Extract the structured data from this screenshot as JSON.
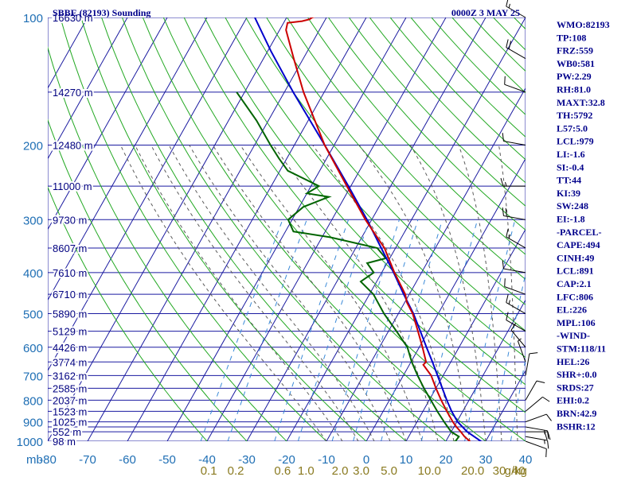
{
  "header": {
    "station": "SBBE (82193) Sounding",
    "time": "0000Z  3 MAY 25"
  },
  "colors": {
    "grid": "#1a1aa0",
    "dry_adiabat": "#22a822",
    "moist_adiabat": "#5a5a5a",
    "mixing_ratio": "#3a8ad8",
    "temperature": "#cc0000",
    "dewpoint": "#006400",
    "parcel": "#0000cc",
    "text": "#00008b"
  },
  "chart_data": {
    "type": "skew-t",
    "pressure_unit_label": "mb",
    "mixing_ratio_unit_label": "g/kg",
    "xlim": [
      -80,
      40
    ],
    "ylim": [
      1000,
      100
    ],
    "pressure_levels": [
      100,
      200,
      300,
      400,
      500,
      600,
      700,
      800,
      900,
      1000
    ],
    "pressure_labels": [
      "100",
      "200",
      "300",
      "400",
      "500",
      "600",
      "700",
      "800",
      "900",
      "1000"
    ],
    "pressure_grid": [
      100,
      150,
      200,
      250,
      300,
      350,
      400,
      450,
      500,
      550,
      600,
      650,
      700,
      750,
      800,
      850,
      900,
      925,
      950,
      1000
    ],
    "temperature_ticks": [
      -80,
      -70,
      -60,
      -50,
      -40,
      -30,
      -20,
      -10,
      0,
      10,
      20,
      30,
      40
    ],
    "temperature_tick_labels": [
      "-80",
      "-70",
      "-60",
      "-50",
      "-40",
      "-30",
      "-20",
      "-10",
      "0",
      "10",
      "20",
      "30",
      "40"
    ],
    "mixing_ratio_values": [
      0.1,
      0.2,
      0.6,
      1.0,
      2.0,
      3.0,
      5.0,
      10.0,
      20.0,
      30.0,
      40.0
    ],
    "mixing_ratio_labels": [
      "0.1",
      "0.2",
      "0.6",
      "1.0",
      "2.0",
      "3.0",
      "5.0",
      "10.0",
      "20.0",
      "30",
      "40"
    ],
    "heights": [
      {
        "p": 100,
        "label": "16630 m"
      },
      {
        "p": 150,
        "label": "14270 m"
      },
      {
        "p": 200,
        "label": "12480 m"
      },
      {
        "p": 250,
        "label": "11000 m"
      },
      {
        "p": 300,
        "label": "9730 m"
      },
      {
        "p": 350,
        "label": "8607 m"
      },
      {
        "p": 400,
        "label": "7610 m"
      },
      {
        "p": 450,
        "label": "6710 m"
      },
      {
        "p": 500,
        "label": "5890 m"
      },
      {
        "p": 550,
        "label": "5129 m"
      },
      {
        "p": 600,
        "label": "4426 m"
      },
      {
        "p": 650,
        "label": "3774 m"
      },
      {
        "p": 700,
        "label": "3162 m"
      },
      {
        "p": 750,
        "label": "2585 m"
      },
      {
        "p": 800,
        "label": "2037 m"
      },
      {
        "p": 850,
        "label": "1523 m"
      },
      {
        "p": 900,
        "label": "1025 m"
      },
      {
        "p": 950,
        "label": "552 m"
      },
      {
        "p": 1000,
        "label": "98 m"
      }
    ],
    "temperature_profile": [
      {
        "p": 1010,
        "t": 26.4
      },
      {
        "p": 1000,
        "t": 26.0
      },
      {
        "p": 975,
        "t": 24.0
      },
      {
        "p": 950,
        "t": 22.4
      },
      {
        "p": 925,
        "t": 20.6
      },
      {
        "p": 900,
        "t": 19.0
      },
      {
        "p": 850,
        "t": 16.0
      },
      {
        "p": 800,
        "t": 13.0
      },
      {
        "p": 750,
        "t": 10.0
      },
      {
        "p": 700,
        "t": 7.0
      },
      {
        "p": 660,
        "t": 3.5
      },
      {
        "p": 650,
        "t": 3.8
      },
      {
        "p": 600,
        "t": 0.8
      },
      {
        "p": 550,
        "t": -2.6
      },
      {
        "p": 500,
        "t": -6.4
      },
      {
        "p": 470,
        "t": -9.5
      },
      {
        "p": 450,
        "t": -11.0
      },
      {
        "p": 400,
        "t": -16.8
      },
      {
        "p": 350,
        "t": -22.8
      },
      {
        "p": 300,
        "t": -31.6
      },
      {
        "p": 250,
        "t": -41.0
      },
      {
        "p": 200,
        "t": -52.4
      },
      {
        "p": 150,
        "t": -65.2
      },
      {
        "p": 125,
        "t": -72.4
      },
      {
        "p": 107,
        "t": -78.4
      },
      {
        "p": 103,
        "t": -79.0
      },
      {
        "p": 102,
        "t": -75.6
      },
      {
        "p": 101,
        "t": -74.0
      },
      {
        "p": 100,
        "t": -73.6
      },
      {
        "p": 96,
        "t": -67.6
      }
    ],
    "dewpoint_profile": [
      {
        "p": 1010,
        "t": 20.8
      },
      {
        "p": 1000,
        "t": 22.4
      },
      {
        "p": 975,
        "t": 22.6
      },
      {
        "p": 950,
        "t": 20.0
      },
      {
        "p": 925,
        "t": 18.4
      },
      {
        "p": 900,
        "t": 16.8
      },
      {
        "p": 850,
        "t": 13.6
      },
      {
        "p": 800,
        "t": 10.4
      },
      {
        "p": 750,
        "t": 7.0
      },
      {
        "p": 700,
        "t": 3.6
      },
      {
        "p": 650,
        "t": 0.2
      },
      {
        "p": 600,
        "t": -3.0
      },
      {
        "p": 550,
        "t": -8.0
      },
      {
        "p": 500,
        "t": -13.6
      },
      {
        "p": 450,
        "t": -19.0
      },
      {
        "p": 420,
        "t": -24.0
      },
      {
        "p": 400,
        "t": -22.0
      },
      {
        "p": 380,
        "t": -25.0
      },
      {
        "p": 370,
        "t": -21.0
      },
      {
        "p": 350,
        "t": -24.6
      },
      {
        "p": 330,
        "t": -38.0
      },
      {
        "p": 320,
        "t": -48.0
      },
      {
        "p": 300,
        "t": -51.0
      },
      {
        "p": 280,
        "t": -49.0
      },
      {
        "p": 265,
        "t": -44.0
      },
      {
        "p": 260,
        "t": -50.0
      },
      {
        "p": 250,
        "t": -48.0
      },
      {
        "p": 230,
        "t": -58.0
      },
      {
        "p": 215,
        "t": -62.0
      },
      {
        "p": 200,
        "t": -66.0
      },
      {
        "p": 175,
        "t": -73.0
      },
      {
        "p": 150,
        "t": -82.0
      }
    ],
    "parcel_profile": [
      {
        "p": 1010,
        "t": 29.6
      },
      {
        "p": 1000,
        "t": 28.8
      },
      {
        "p": 950,
        "t": 24.0
      },
      {
        "p": 900,
        "t": 20.2
      },
      {
        "p": 850,
        "t": 17.2
      },
      {
        "p": 800,
        "t": 14.4
      },
      {
        "p": 750,
        "t": 11.6
      },
      {
        "p": 700,
        "t": 8.6
      },
      {
        "p": 650,
        "t": 5.4
      },
      {
        "p": 600,
        "t": 1.8
      },
      {
        "p": 550,
        "t": -2.0
      },
      {
        "p": 500,
        "t": -6.2
      },
      {
        "p": 450,
        "t": -11.4
      },
      {
        "p": 400,
        "t": -17.0
      },
      {
        "p": 350,
        "t": -23.6
      },
      {
        "p": 300,
        "t": -31.2
      },
      {
        "p": 250,
        "t": -40.6
      },
      {
        "p": 200,
        "t": -52.4
      },
      {
        "p": 150,
        "t": -67.8
      },
      {
        "p": 120,
        "t": -79.2
      },
      {
        "p": 100,
        "t": -88.0
      }
    ],
    "wind_barbs": [
      {
        "p": 1000,
        "dir": 110,
        "spd": 10
      },
      {
        "p": 975,
        "dir": 100,
        "spd": 15
      },
      {
        "p": 950,
        "dir": 90,
        "spd": 20
      },
      {
        "p": 925,
        "dir": 100,
        "spd": 15
      },
      {
        "p": 900,
        "dir": 70,
        "spd": 10
      },
      {
        "p": 850,
        "dir": 50,
        "spd": 10
      },
      {
        "p": 800,
        "dir": 30,
        "spd": 10
      },
      {
        "p": 700,
        "dir": 10,
        "spd": 10
      },
      {
        "p": 650,
        "dir": 340,
        "spd": 5
      },
      {
        "p": 600,
        "dir": 320,
        "spd": 10
      },
      {
        "p": 550,
        "dir": 300,
        "spd": 10
      },
      {
        "p": 500,
        "dir": 300,
        "spd": 15
      },
      {
        "p": 450,
        "dir": 290,
        "spd": 10
      },
      {
        "p": 400,
        "dir": 280,
        "spd": 10
      },
      {
        "p": 350,
        "dir": 300,
        "spd": 15
      },
      {
        "p": 300,
        "dir": 280,
        "spd": 20
      },
      {
        "p": 250,
        "dir": 270,
        "spd": 15
      },
      {
        "p": 200,
        "dir": 280,
        "spd": 10
      },
      {
        "p": 150,
        "dir": 290,
        "spd": 10
      },
      {
        "p": 125,
        "dir": 300,
        "spd": 20
      },
      {
        "p": 100,
        "dir": 300,
        "spd": 15
      }
    ]
  },
  "indices": [
    "WMO:82193",
    "TP:108",
    "FRZ:559",
    "WB0:581",
    "PW:2.29",
    "RH:81.0",
    "MAXT:32.8",
    "TH:5792",
    "L57:5.0",
    "LCL:979",
    "LI:-1.6",
    "SI:-0.4",
    "TT:44",
    "KI:39",
    "SW:248",
    "EI:-1.8",
    "-PARCEL-",
    "CAPE:494",
    "CINH:49",
    "LCL:891",
    "CAP:2.1",
    "LFC:806",
    "EL:226",
    "MPL:106",
    "-WIND-",
    "STM:118/11",
    "HEL:26",
    "SHR+:0.0",
    "SRDS:27",
    "EHI:0.2",
    "BRN:42.9",
    "BSHR:12"
  ]
}
